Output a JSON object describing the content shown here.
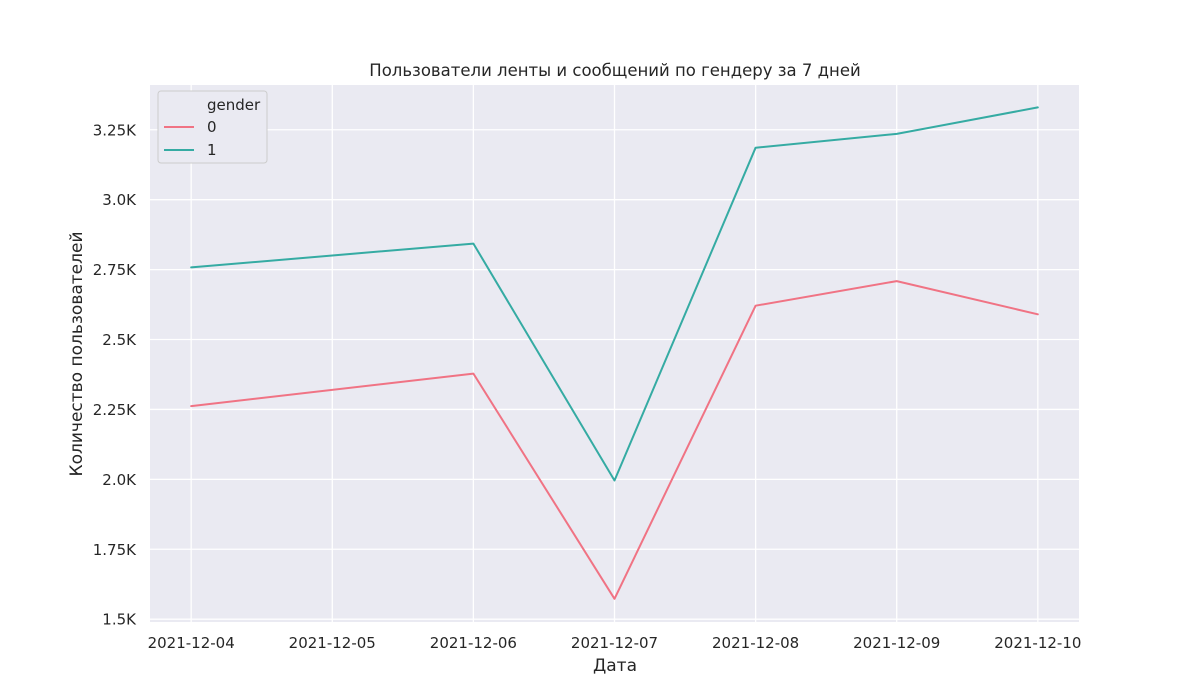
{
  "chart_data": {
    "type": "line",
    "title": "Пользователи ленты и сообщений по гендеру за 7 дней",
    "xlabel": "Дата",
    "ylabel": "Количество пользователей",
    "x": [
      "2021-12-04",
      "2021-12-06",
      "2021-12-07",
      "2021-12-08",
      "2021-12-09",
      "2021-12-10"
    ],
    "x_ticks": [
      "2021-12-04",
      "2021-12-05",
      "2021-12-06",
      "2021-12-07",
      "2021-12-08",
      "2021-12-09",
      "2021-12-10"
    ],
    "xlim": [
      "2021-12-03T17:00",
      "2021-12-10T07:00"
    ],
    "ylim": [
      1490,
      3410
    ],
    "y_ticks": [
      1500,
      1750,
      2000,
      2250,
      2500,
      2750,
      3000,
      3250
    ],
    "y_tick_labels": [
      "1.5K",
      "1.75K",
      "2.0K",
      "2.25K",
      "2.5K",
      "2.75K",
      "3.0K",
      "3.25K"
    ],
    "grid": true,
    "legend": {
      "title": "gender",
      "placement": "top-left"
    },
    "series": [
      {
        "name": "0",
        "color": "#f07384",
        "values": [
          2262,
          2378,
          1573,
          2621,
          2709,
          2590
        ]
      },
      {
        "name": "1",
        "color": "#35aba3",
        "values": [
          2758,
          2843,
          1996,
          3186,
          3235,
          3330
        ]
      }
    ],
    "plot_background": "#eaeaf2",
    "grid_color": "#ffffff"
  }
}
